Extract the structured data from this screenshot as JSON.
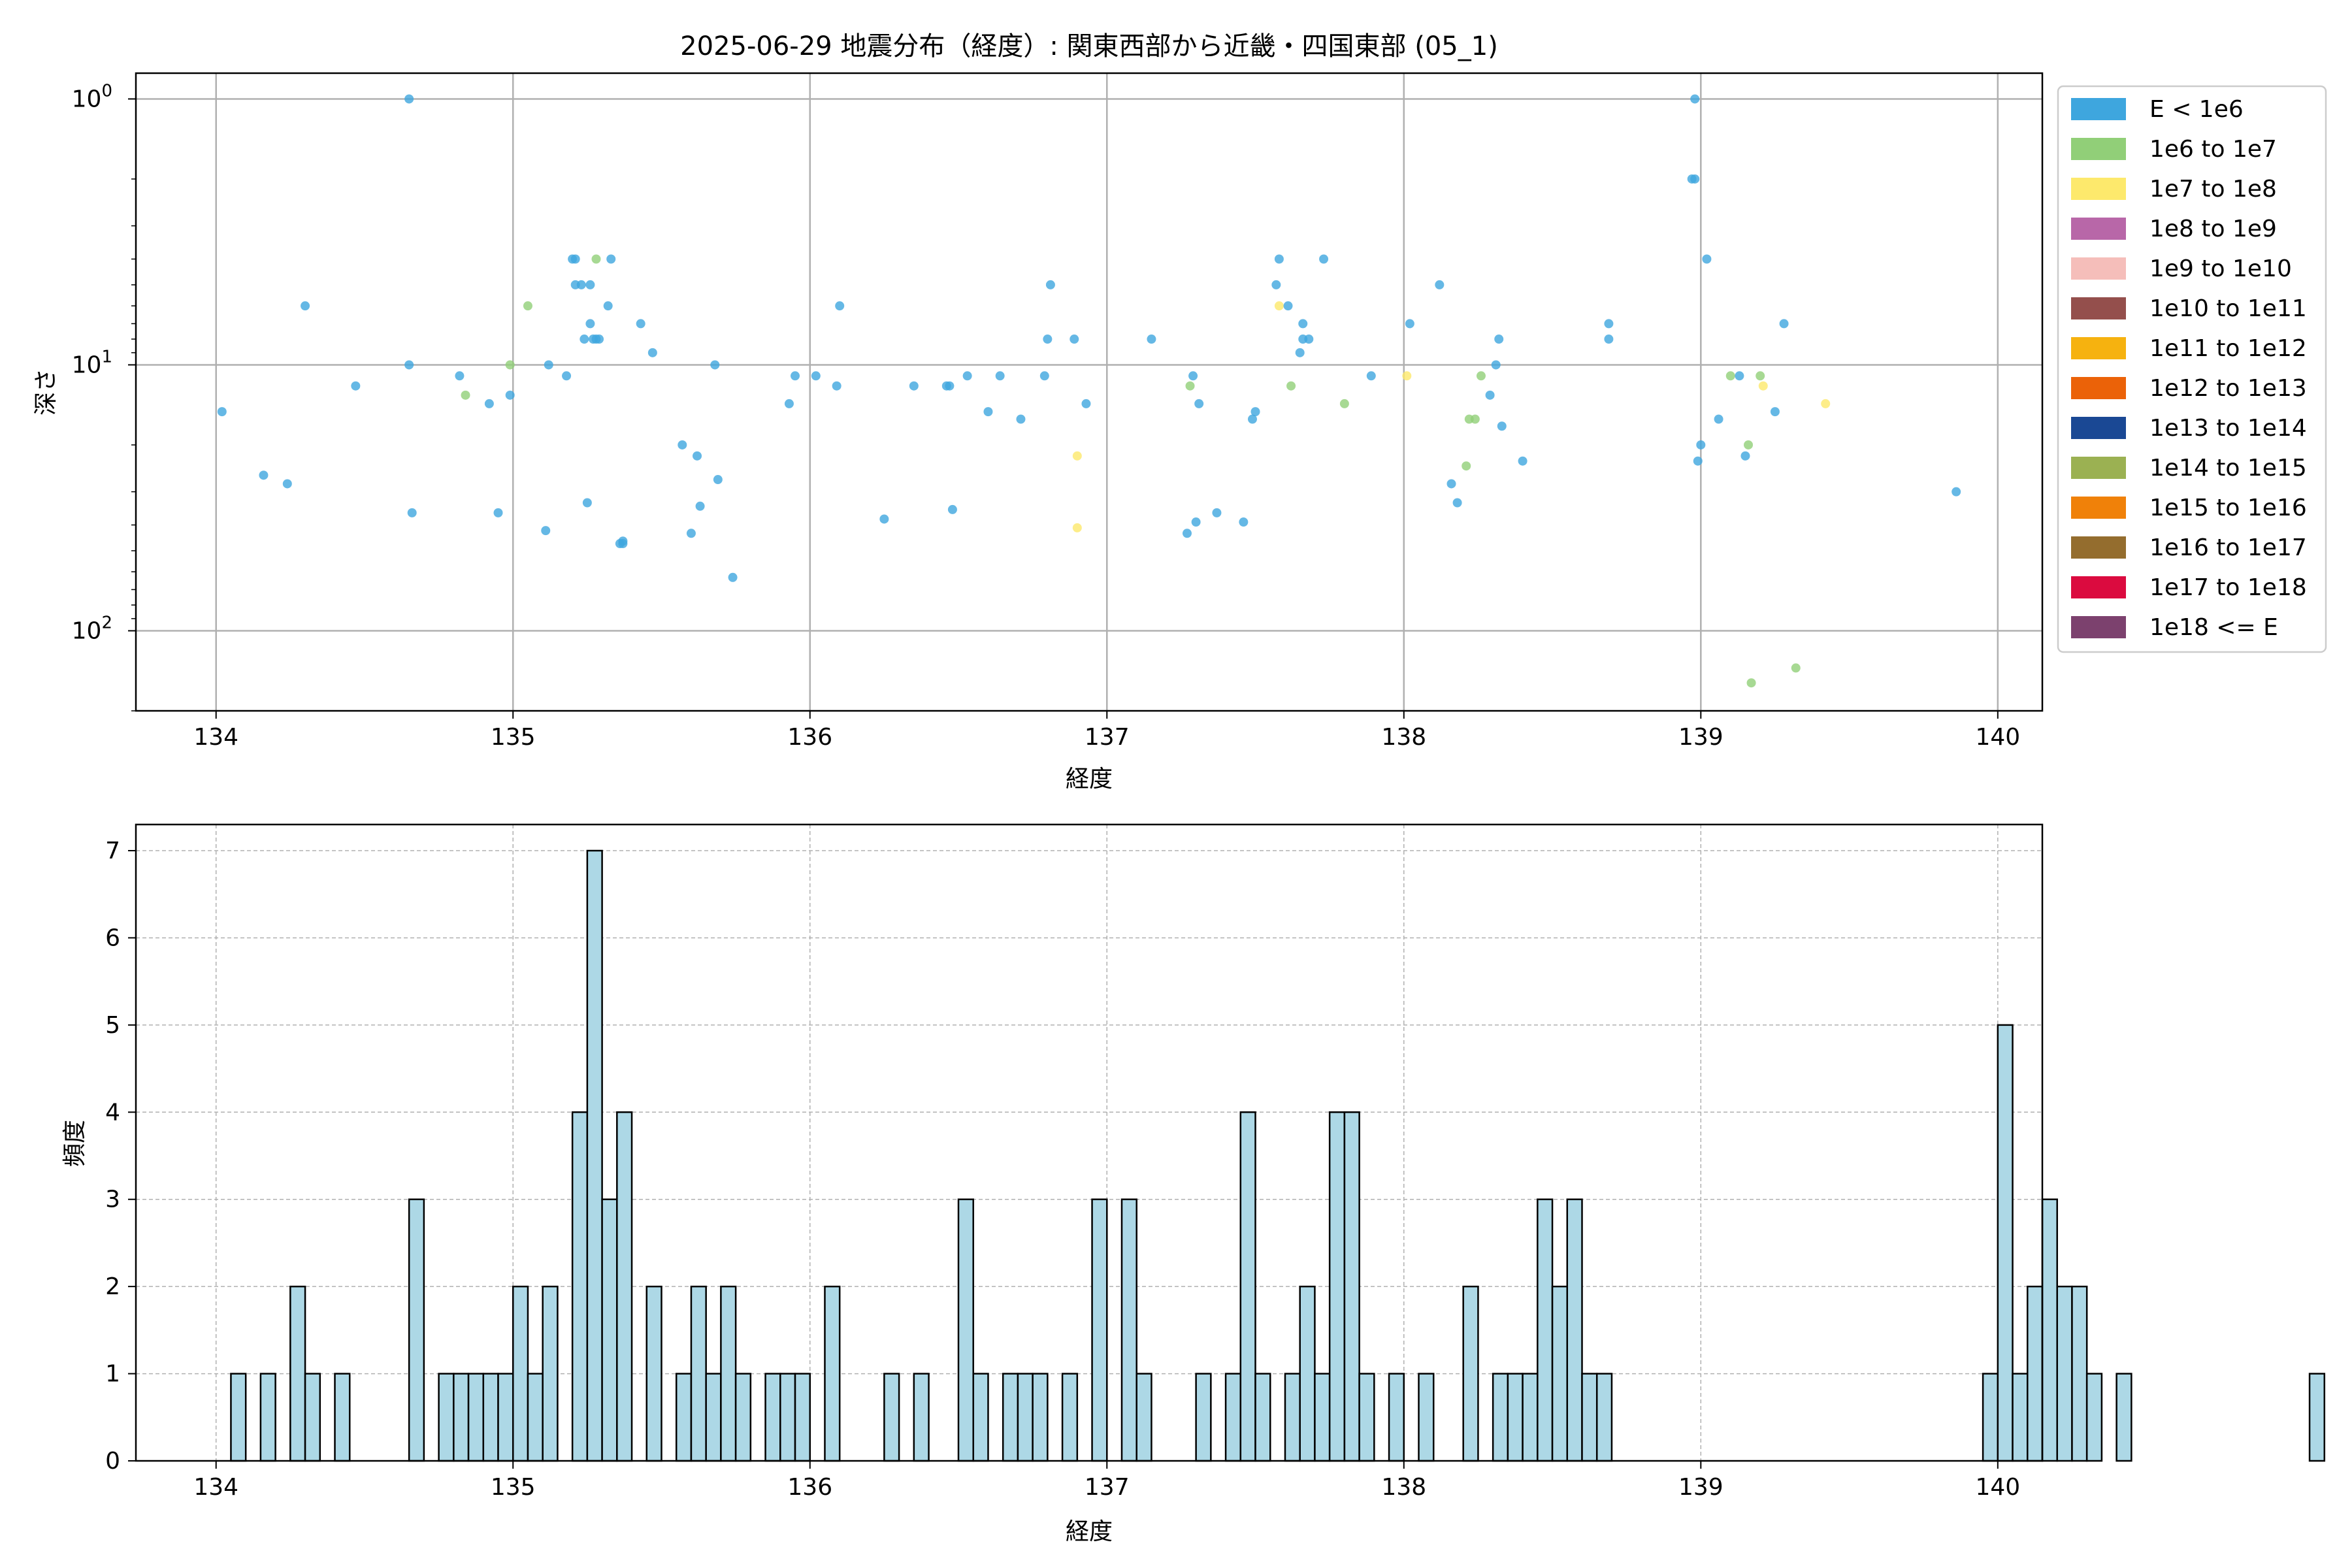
{
  "title": "2025-06-29 地震分布（経度）: 関東西部から近畿・四国東部 (05_1)",
  "chart_data": [
    {
      "type": "scatter",
      "xlabel": "経度",
      "ylabel": "深さ",
      "xlim": [
        133.73,
        140.15
      ],
      "ylim": [
        200,
        0.8
      ],
      "yscale": "log-inverted",
      "xticks": [
        "134",
        "135",
        "136",
        "137",
        "138",
        "139",
        "140"
      ],
      "xtick_values": [
        134,
        135,
        136,
        137,
        138,
        139,
        140
      ],
      "yticks": [
        {
          "value": 1,
          "base": "10",
          "exp": "0"
        },
        {
          "value": 10,
          "base": "10",
          "exp": "1"
        },
        {
          "value": 100,
          "base": "10",
          "exp": "2"
        }
      ],
      "grid": true,
      "legend_position": "outside-right",
      "legend": [
        {
          "label": "E < 1e6",
          "color": "#3ea6de"
        },
        {
          "label": "1e6 to 1e7",
          "color": "#91cf78"
        },
        {
          "label": "1e7 to 1e8",
          "color": "#fde96c"
        },
        {
          "label": "1e8 to 1e9",
          "color": "#b867a8"
        },
        {
          "label": "1e9 to 1e10",
          "color": "#f5beba"
        },
        {
          "label": "1e10 to 1e11",
          "color": "#944f4c"
        },
        {
          "label": "1e11 to 1e12",
          "color": "#f6b20f"
        },
        {
          "label": "1e12 to 1e13",
          "color": "#eb6208"
        },
        {
          "label": "1e13 to 1e14",
          "color": "#1a4894"
        },
        {
          "label": "1e14 to 1e15",
          "color": "#9bb152"
        },
        {
          "label": "1e15 to 1e16",
          "color": "#f08109"
        },
        {
          "label": "1e16 to 1e17",
          "color": "#946d2e"
        },
        {
          "label": "1e17 to 1e18",
          "color": "#db0b3f"
        },
        {
          "label": "1e18 <= E",
          "color": "#7c416e"
        }
      ],
      "points": [
        {
          "x": 134.02,
          "y": 15,
          "c": 0
        },
        {
          "x": 134.16,
          "y": 26,
          "c": 0
        },
        {
          "x": 134.24,
          "y": 28,
          "c": 0
        },
        {
          "x": 134.3,
          "y": 6,
          "c": 0
        },
        {
          "x": 134.47,
          "y": 12,
          "c": 0
        },
        {
          "x": 134.65,
          "y": 1,
          "c": 0
        },
        {
          "x": 134.65,
          "y": 10,
          "c": 0
        },
        {
          "x": 134.66,
          "y": 36,
          "c": 0
        },
        {
          "x": 134.82,
          "y": 11,
          "c": 0
        },
        {
          "x": 134.84,
          "y": 13,
          "c": 1
        },
        {
          "x": 134.92,
          "y": 14,
          "c": 0
        },
        {
          "x": 134.95,
          "y": 36,
          "c": 0
        },
        {
          "x": 134.99,
          "y": 10,
          "c": 1
        },
        {
          "x": 134.99,
          "y": 13,
          "c": 0
        },
        {
          "x": 135.05,
          "y": 6,
          "c": 1
        },
        {
          "x": 135.11,
          "y": 42,
          "c": 0
        },
        {
          "x": 135.12,
          "y": 10,
          "c": 0
        },
        {
          "x": 135.18,
          "y": 11,
          "c": 0
        },
        {
          "x": 135.2,
          "y": 4,
          "c": 0
        },
        {
          "x": 135.21,
          "y": 4,
          "c": 0
        },
        {
          "x": 135.21,
          "y": 5,
          "c": 0
        },
        {
          "x": 135.23,
          "y": 5,
          "c": 0
        },
        {
          "x": 135.24,
          "y": 8,
          "c": 0
        },
        {
          "x": 135.25,
          "y": 33,
          "c": 0
        },
        {
          "x": 135.26,
          "y": 5,
          "c": 0
        },
        {
          "x": 135.26,
          "y": 7,
          "c": 0
        },
        {
          "x": 135.27,
          "y": 8,
          "c": 0
        },
        {
          "x": 135.28,
          "y": 4,
          "c": 1
        },
        {
          "x": 135.28,
          "y": 8,
          "c": 0
        },
        {
          "x": 135.29,
          "y": 8,
          "c": 0
        },
        {
          "x": 135.32,
          "y": 6,
          "c": 0
        },
        {
          "x": 135.33,
          "y": 4,
          "c": 0
        },
        {
          "x": 135.36,
          "y": 47,
          "c": 0
        },
        {
          "x": 135.37,
          "y": 46,
          "c": 0
        },
        {
          "x": 135.37,
          "y": 47,
          "c": 0
        },
        {
          "x": 135.43,
          "y": 7,
          "c": 0
        },
        {
          "x": 135.47,
          "y": 9,
          "c": 0
        },
        {
          "x": 135.57,
          "y": 20,
          "c": 0
        },
        {
          "x": 135.6,
          "y": 43,
          "c": 0
        },
        {
          "x": 135.62,
          "y": 22,
          "c": 0
        },
        {
          "x": 135.63,
          "y": 34,
          "c": 0
        },
        {
          "x": 135.68,
          "y": 10,
          "c": 0
        },
        {
          "x": 135.69,
          "y": 27,
          "c": 0
        },
        {
          "x": 135.74,
          "y": 63,
          "c": 0
        },
        {
          "x": 135.93,
          "y": 14,
          "c": 0
        },
        {
          "x": 135.95,
          "y": 11,
          "c": 0
        },
        {
          "x": 136.02,
          "y": 11,
          "c": 0
        },
        {
          "x": 136.09,
          "y": 12,
          "c": 0
        },
        {
          "x": 136.1,
          "y": 6,
          "c": 0
        },
        {
          "x": 136.25,
          "y": 38,
          "c": 0
        },
        {
          "x": 136.35,
          "y": 12,
          "c": 0
        },
        {
          "x": 136.46,
          "y": 12,
          "c": 0
        },
        {
          "x": 136.47,
          "y": 12,
          "c": 0
        },
        {
          "x": 136.48,
          "y": 35,
          "c": 0
        },
        {
          "x": 136.53,
          "y": 11,
          "c": 0
        },
        {
          "x": 136.6,
          "y": 15,
          "c": 0
        },
        {
          "x": 136.64,
          "y": 11,
          "c": 0
        },
        {
          "x": 136.71,
          "y": 16,
          "c": 0
        },
        {
          "x": 136.79,
          "y": 11,
          "c": 0
        },
        {
          "x": 136.8,
          "y": 8,
          "c": 0
        },
        {
          "x": 136.81,
          "y": 5,
          "c": 0
        },
        {
          "x": 136.89,
          "y": 8,
          "c": 0
        },
        {
          "x": 136.9,
          "y": 22,
          "c": 2
        },
        {
          "x": 136.9,
          "y": 41,
          "c": 2
        },
        {
          "x": 136.93,
          "y": 14,
          "c": 0
        },
        {
          "x": 137.15,
          "y": 8,
          "c": 0
        },
        {
          "x": 137.27,
          "y": 43,
          "c": 0
        },
        {
          "x": 137.28,
          "y": 12,
          "c": 1
        },
        {
          "x": 137.29,
          "y": 11,
          "c": 0
        },
        {
          "x": 137.3,
          "y": 39,
          "c": 0
        },
        {
          "x": 137.31,
          "y": 14,
          "c": 0
        },
        {
          "x": 137.37,
          "y": 36,
          "c": 0
        },
        {
          "x": 137.46,
          "y": 39,
          "c": 0
        },
        {
          "x": 137.49,
          "y": 16,
          "c": 0
        },
        {
          "x": 137.5,
          "y": 15,
          "c": 0
        },
        {
          "x": 137.57,
          "y": 5,
          "c": 0
        },
        {
          "x": 137.58,
          "y": 6,
          "c": 2
        },
        {
          "x": 137.58,
          "y": 4,
          "c": 0
        },
        {
          "x": 137.61,
          "y": 6,
          "c": 0
        },
        {
          "x": 137.62,
          "y": 12,
          "c": 1
        },
        {
          "x": 137.65,
          "y": 9,
          "c": 0
        },
        {
          "x": 137.66,
          "y": 7,
          "c": 0
        },
        {
          "x": 137.66,
          "y": 8,
          "c": 0
        },
        {
          "x": 137.68,
          "y": 8,
          "c": 0
        },
        {
          "x": 137.73,
          "y": 4,
          "c": 0
        },
        {
          "x": 137.8,
          "y": 14,
          "c": 1
        },
        {
          "x": 137.89,
          "y": 11,
          "c": 0
        },
        {
          "x": 138.01,
          "y": 11,
          "c": 2
        },
        {
          "x": 138.02,
          "y": 7,
          "c": 0
        },
        {
          "x": 138.12,
          "y": 5,
          "c": 0
        },
        {
          "x": 138.16,
          "y": 28,
          "c": 0
        },
        {
          "x": 138.18,
          "y": 33,
          "c": 0
        },
        {
          "x": 138.21,
          "y": 24,
          "c": 1
        },
        {
          "x": 138.22,
          "y": 16,
          "c": 1
        },
        {
          "x": 138.24,
          "y": 16,
          "c": 1
        },
        {
          "x": 138.26,
          "y": 11,
          "c": 1
        },
        {
          "x": 138.29,
          "y": 13,
          "c": 0
        },
        {
          "x": 138.31,
          "y": 10,
          "c": 0
        },
        {
          "x": 138.32,
          "y": 8,
          "c": 0
        },
        {
          "x": 138.33,
          "y": 17,
          "c": 0
        },
        {
          "x": 138.4,
          "y": 23,
          "c": 0
        },
        {
          "x": 138.69,
          "y": 7,
          "c": 0
        },
        {
          "x": 138.69,
          "y": 8,
          "c": 0
        },
        {
          "x": 138.97,
          "y": 2,
          "c": 0
        },
        {
          "x": 138.98,
          "y": 2,
          "c": 0
        },
        {
          "x": 138.98,
          "y": 1,
          "c": 0
        },
        {
          "x": 138.99,
          "y": 23,
          "c": 0
        },
        {
          "x": 139,
          "y": 20,
          "c": 0
        },
        {
          "x": 139.02,
          "y": 4,
          "c": 0
        },
        {
          "x": 139.06,
          "y": 16,
          "c": 0
        },
        {
          "x": 139.1,
          "y": 11,
          "c": 1
        },
        {
          "x": 139.13,
          "y": 11,
          "c": 0
        },
        {
          "x": 139.15,
          "y": 22,
          "c": 0
        },
        {
          "x": 139.16,
          "y": 20,
          "c": 1
        },
        {
          "x": 139.17,
          "y": 157,
          "c": 1
        },
        {
          "x": 139.2,
          "y": 11,
          "c": 1
        },
        {
          "x": 139.21,
          "y": 12,
          "c": 2
        },
        {
          "x": 139.25,
          "y": 15,
          "c": 0
        },
        {
          "x": 139.28,
          "y": 7,
          "c": 0
        },
        {
          "x": 139.32,
          "y": 138,
          "c": 1
        },
        {
          "x": 139.42,
          "y": 14,
          "c": 2
        },
        {
          "x": 139.86,
          "y": 30,
          "c": 0
        }
      ]
    },
    {
      "type": "bar",
      "xlabel": "経度",
      "ylabel": "頻度",
      "xlim": [
        133.73,
        140.15
      ],
      "ylim": [
        0,
        7.3
      ],
      "xticks": [
        "134",
        "135",
        "136",
        "137",
        "138",
        "139",
        "140"
      ],
      "xtick_values": [
        134,
        135,
        136,
        137,
        138,
        139,
        140
      ],
      "yticks": [
        "0",
        "1",
        "2",
        "3",
        "4",
        "5",
        "6",
        "7"
      ],
      "grid": true,
      "bar_color": "#add8e6",
      "bin_start": 134.0,
      "bin_width": 0.05,
      "counts": [
        0,
        1,
        0,
        1,
        0,
        2,
        1,
        0,
        1,
        0,
        0,
        0,
        0,
        3,
        0,
        1,
        1,
        1,
        1,
        1,
        2,
        1,
        2,
        0,
        4,
        7,
        3,
        4,
        0,
        2,
        0,
        1,
        2,
        1,
        2,
        1,
        0,
        1,
        1,
        1,
        0,
        2,
        0,
        0,
        0,
        1,
        0,
        1,
        0,
        0,
        3,
        1,
        0,
        1,
        1,
        1,
        0,
        1,
        0,
        3,
        0,
        3,
        1,
        0,
        0,
        0,
        1,
        0,
        1,
        4,
        1,
        0,
        1,
        2,
        1,
        4,
        4,
        1,
        0,
        1,
        0,
        1,
        0,
        0,
        2,
        0,
        1,
        1,
        1,
        3,
        2,
        3,
        1,
        1,
        0,
        0,
        0,
        0,
        0,
        0,
        0,
        0,
        0,
        0,
        0,
        0,
        0,
        0,
        0,
        0,
        0,
        0,
        0,
        0,
        0,
        0,
        0,
        0,
        0,
        1,
        5,
        1,
        2,
        3,
        2,
        2,
        1,
        0,
        1,
        0,
        0,
        0,
        0,
        0,
        0,
        0,
        0,
        0,
        0,
        0,
        0,
        1
      ]
    }
  ]
}
